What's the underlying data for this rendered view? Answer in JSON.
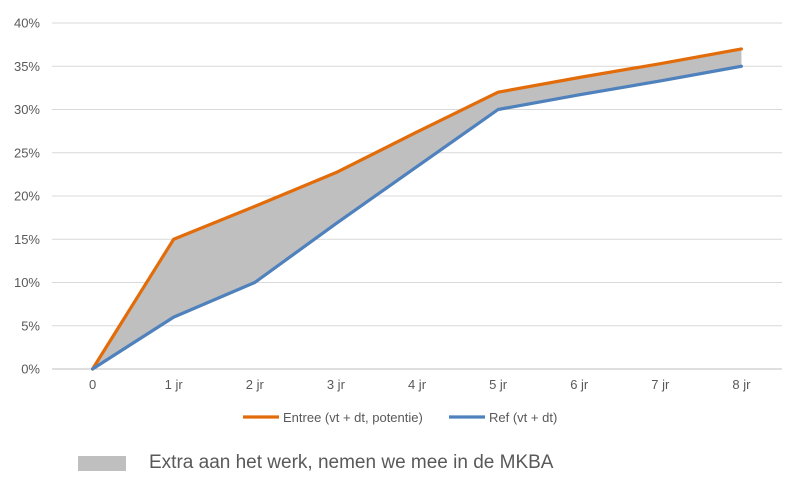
{
  "chart_data": {
    "type": "line",
    "categories": [
      "0",
      "1 jr",
      "2 jr",
      "3 jr",
      "4 jr",
      "5 jr",
      "6 jr",
      "7 jr",
      "8 jr"
    ],
    "ylim": [
      0,
      40
    ],
    "ytick_labels": [
      "0%",
      "5%",
      "10%",
      "15%",
      "20%",
      "25%",
      "30%",
      "35%",
      "40%"
    ],
    "grid": true,
    "legend_position": "bottom",
    "series": [
      {
        "name": "Entree (vt + dt, potentie)",
        "color": "#e36c0a",
        "values": [
          0,
          15,
          18.8,
          22.7,
          27.4,
          32,
          33.7,
          35.3,
          37
        ]
      },
      {
        "name": "Ref (vt + dt)",
        "color": "#4f81bd",
        "values": [
          0,
          6,
          10,
          16.8,
          23.4,
          30,
          31.7,
          33.3,
          35
        ]
      }
    ],
    "band": {
      "label": "Extra aan het werk, nemen we mee in de MKBA",
      "color": "#bfbfbf"
    }
  }
}
